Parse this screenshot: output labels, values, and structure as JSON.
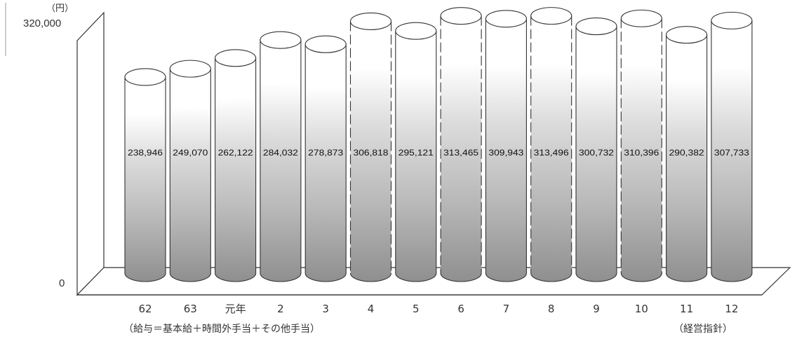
{
  "chart_data": {
    "type": "bar",
    "unit": "（円）",
    "ylim": [
      0,
      320000
    ],
    "y_tick_labels": [
      "320,000",
      "0"
    ],
    "categories": [
      "62",
      "63",
      "元年",
      "2",
      "3",
      "4",
      "5",
      "6",
      "7",
      "8",
      "9",
      "10",
      "11",
      "12"
    ],
    "values": [
      238946,
      249070,
      262122,
      284032,
      278873,
      306818,
      295121,
      313465,
      309943,
      313496,
      300732,
      310396,
      290382,
      307733
    ],
    "value_labels": [
      "238,946",
      "249,070",
      "262,122",
      "284,032",
      "278,873",
      "306,818",
      "295,121",
      "313,465",
      "309,943",
      "313,496",
      "300,732",
      "310,396",
      "290,382",
      "307,733"
    ],
    "dashed_categories": [
      "4",
      "6",
      "8",
      "10"
    ],
    "footnote_left": "（給与＝基本給＋時間外手当＋その他手当）",
    "footnote_right": "（経営指針）"
  }
}
